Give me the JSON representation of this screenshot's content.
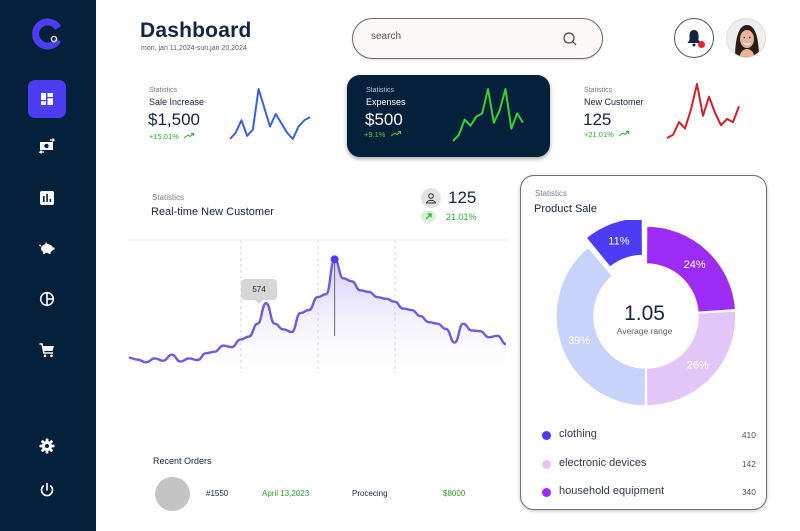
{
  "sidebar": {
    "logo": "app-logo",
    "items": [
      {
        "name": "dashboard",
        "icon": "dashboard-icon",
        "active": true
      },
      {
        "name": "transactions",
        "icon": "money-exchange-icon",
        "active": false
      },
      {
        "name": "reports",
        "icon": "bar-chart-icon",
        "active": false
      },
      {
        "name": "savings",
        "icon": "piggy-bank-icon",
        "active": false
      },
      {
        "name": "analytics",
        "icon": "pie-chart-icon",
        "active": false
      },
      {
        "name": "orders",
        "icon": "shopping-cart-icon",
        "active": false
      }
    ],
    "bottom_items": [
      {
        "name": "settings",
        "icon": "gear-icon"
      },
      {
        "name": "logout",
        "icon": "power-icon"
      }
    ]
  },
  "header": {
    "title": "Dashboard",
    "date_range": "mon, jan 11,2024-sun,jan 20,2024",
    "search_placeholder": "search",
    "notification_badge": true
  },
  "stats": [
    {
      "label": "Statistics",
      "title": "Sale Increase",
      "value": "$1,500",
      "change": "+15.01%",
      "color": "#3b5fe0",
      "spark": [
        2,
        4,
        8,
        3,
        5,
        18,
        12,
        6,
        10,
        7,
        4,
        2,
        6,
        8,
        9
      ]
    },
    {
      "label": "Statistics",
      "title": "Expenses",
      "value": "$500",
      "change": "+9.1%",
      "color": "#38d130",
      "spark": [
        1,
        3,
        8,
        6,
        9,
        10,
        18,
        7,
        11,
        18,
        5,
        10,
        7
      ]
    },
    {
      "label": "Statistics",
      "title": "New Customer",
      "value": "125",
      "change": "+21.01%",
      "color": "#d0202d",
      "spark": [
        1,
        2,
        6,
        4,
        10,
        18,
        8,
        14,
        9,
        5,
        7,
        6,
        11
      ]
    }
  ],
  "realtime": {
    "label": "Statistics",
    "title": "Real-time New Customer",
    "count": "125",
    "change": "21.01%",
    "tooltip_value": "574",
    "accent": "#5b4ee6"
  },
  "chart_data": {
    "type": "area",
    "title": "Real-time New Customer",
    "xlabel": "",
    "ylabel": "",
    "highlight_value": 574,
    "y": [
      430,
      425,
      418,
      428,
      422,
      438,
      420,
      428,
      424,
      442,
      446,
      462,
      458,
      478,
      486,
      520,
      574,
      520,
      505,
      498,
      548,
      556,
      590,
      598,
      690,
      640,
      632,
      608,
      604,
      590,
      586,
      578,
      560,
      556,
      540,
      524,
      520,
      506,
      470,
      520,
      502,
      500,
      484,
      488,
      466
    ],
    "grid": "vertical dashed",
    "ylim": [
      350,
      720
    ]
  },
  "recent_orders": {
    "title": "Recent Orders",
    "rows": [
      {
        "id": "#1550",
        "date": "April 13,2023",
        "status": "Procecing",
        "amount": "$8000"
      }
    ]
  },
  "product_sale": {
    "label": "Statistics",
    "title": "Product Sale",
    "center_value": "1.05",
    "center_label": "Average range",
    "chart_data": {
      "type": "pie",
      "slices": [
        {
          "label": "24%",
          "value": 24,
          "color": "#9b2bf5"
        },
        {
          "label": "26%",
          "value": 26,
          "color": "#e2c6f8"
        },
        {
          "label": "39%",
          "value": 39,
          "color": "#c8d3fb"
        },
        {
          "label": "11%",
          "value": 11,
          "color": "#4c3cf5"
        }
      ]
    },
    "legend": [
      {
        "label": "clothing",
        "value": "410",
        "color": "#4c3cf5"
      },
      {
        "label": "electronic devices",
        "value": "142",
        "color": "#e2c6f8"
      },
      {
        "label": "household equipment",
        "value": "340",
        "color": "#9b2bf5"
      }
    ]
  }
}
